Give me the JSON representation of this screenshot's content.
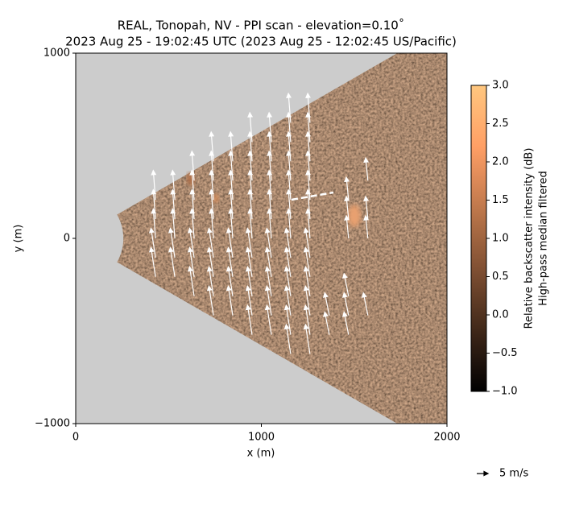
{
  "chart_data": {
    "type": "quiver",
    "title": "REAL, Tonopah, NV - PPI scan - elevation=0.10˚",
    "subtitle": "2023 Aug 25 - 19:02:45 UTC (2023 Aug 25 - 12:02:45 US/Pacific)",
    "x_label": "x (m)",
    "y_label": "y (m)",
    "xlim": [
      0,
      2000
    ],
    "xticks": [
      0,
      1000,
      2000
    ],
    "ylim": [
      -1000,
      1000
    ],
    "yticks": [
      {
        "value": -1000,
        "label": "−1000"
      },
      0,
      1000
    ],
    "scan_sector": {
      "azimuth_deg": [
        -30,
        30
      ],
      "min_range": 257,
      "max_range": 2400
    },
    "arrow_color": "#ffffff",
    "quiver": {
      "x": [
        430,
        430,
        430,
        430,
        430,
        534,
        534,
        534,
        534,
        534,
        638,
        638,
        638,
        638,
        638,
        638,
        638,
        742,
        742,
        742,
        742,
        742,
        742,
        742,
        742,
        742,
        846,
        846,
        846,
        846,
        846,
        846,
        846,
        846,
        846,
        950,
        950,
        950,
        950,
        950,
        950,
        950,
        950,
        950,
        950,
        950,
        1054,
        1054,
        1054,
        1054,
        1054,
        1054,
        1054,
        1054,
        1054,
        1054,
        1054,
        1158,
        1158,
        1158,
        1158,
        1158,
        1158,
        1158,
        1158,
        1158,
        1158,
        1158,
        1158,
        1158,
        1262,
        1262,
        1262,
        1262,
        1262,
        1262,
        1262,
        1262,
        1262,
        1262,
        1262,
        1262,
        1262,
        1366,
        1366,
        1470,
        1470,
        1470,
        1470,
        1470,
        1470,
        1574,
        1574,
        1574,
        1574
      ],
      "y": [
        -208,
        -104,
        0,
        104,
        208,
        -208,
        -104,
        0,
        104,
        208,
        -312,
        -208,
        -104,
        0,
        104,
        208,
        312,
        -416,
        -312,
        -208,
        -104,
        0,
        104,
        208,
        312,
        416,
        -416,
        -312,
        -208,
        -104,
        0,
        104,
        208,
        312,
        416,
        -520,
        -416,
        -312,
        -208,
        -104,
        0,
        104,
        208,
        312,
        416,
        520,
        -520,
        -416,
        -312,
        -208,
        -104,
        0,
        104,
        208,
        312,
        416,
        520,
        -624,
        -520,
        -416,
        -312,
        -208,
        -104,
        0,
        104,
        208,
        312,
        416,
        520,
        624,
        -624,
        -520,
        -416,
        -312,
        -208,
        -104,
        0,
        104,
        208,
        312,
        416,
        520,
        624,
        -520,
        -416,
        -520,
        -416,
        -312,
        0,
        104,
        208,
        -416,
        0,
        104,
        312
      ],
      "u": [
        -2,
        -2,
        -1,
        -1,
        -1,
        -2,
        -2,
        -1,
        -1,
        -1,
        -2,
        -2,
        -2,
        -1,
        -1,
        -1,
        -1,
        -2,
        -2,
        -2,
        -2,
        -1,
        -1,
        -1,
        -1,
        -1,
        -2,
        -2,
        -2,
        -2,
        -1,
        -1,
        -1,
        -1,
        -1,
        -2,
        -2,
        -2,
        -2,
        -2,
        -1,
        -1,
        -1,
        -1,
        -1,
        -1,
        -2,
        -2,
        -2,
        -2,
        -2,
        -1,
        -1,
        -1,
        -1,
        -1,
        -1,
        -2,
        -2,
        -2,
        -2,
        -2,
        -2,
        -1,
        -1,
        -1,
        -1,
        -1,
        -1,
        -1,
        -2,
        -2,
        -2,
        -2,
        -2,
        -2,
        -1,
        -1,
        -1,
        -1,
        -1,
        -1,
        -1,
        -2,
        -2,
        -2,
        -2,
        -2,
        -1,
        -1,
        -1,
        -2,
        -1,
        -1,
        -1
      ],
      "v": [
        13,
        13,
        13,
        13,
        13,
        13,
        13,
        13,
        13,
        13,
        13,
        13,
        13,
        13,
        13,
        13,
        13,
        13,
        13,
        13,
        13,
        13,
        13,
        13,
        13,
        13,
        13,
        13,
        13,
        13,
        13,
        13,
        13,
        13,
        13,
        13,
        13,
        13,
        13,
        13,
        13,
        13,
        13,
        13,
        13,
        13,
        13,
        13,
        13,
        13,
        13,
        13,
        13,
        13,
        13,
        13,
        13,
        13,
        13,
        13,
        13,
        13,
        13,
        13,
        13,
        13,
        13,
        13,
        13,
        13,
        13,
        13,
        13,
        13,
        13,
        13,
        13,
        13,
        13,
        13,
        13,
        13,
        13,
        10,
        10,
        10,
        10,
        10,
        10,
        10,
        10,
        10,
        10,
        10,
        10
      ]
    },
    "quiver_key": {
      "value": 5,
      "label": "5 m/s"
    },
    "colorbar": {
      "colormap": "copper",
      "lim": [
        -1,
        3
      ],
      "label": [
        "Relative backscatter intensity (dB)",
        "High-pass median filtered"
      ],
      "ticks": [
        {
          "value": -1,
          "label": "−1.0"
        },
        {
          "value": -0.5,
          "label": "−0.5"
        },
        {
          "value": 0,
          "label": "0.0"
        },
        {
          "value": 0.5,
          "label": "0.5"
        },
        {
          "value": 1,
          "label": "1.0"
        },
        {
          "value": 1.5,
          "label": "1.5"
        },
        {
          "value": 2,
          "label": "2.0"
        },
        {
          "value": 2.5,
          "label": "2.5"
        },
        {
          "value": 3,
          "label": "3.0"
        }
      ]
    }
  }
}
